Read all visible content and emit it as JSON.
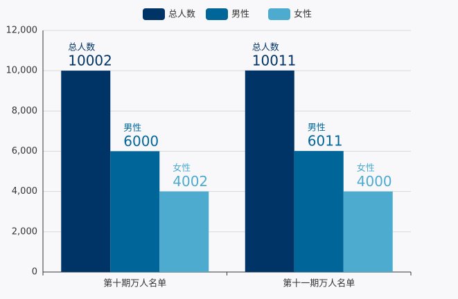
{
  "chart_data": {
    "type": "bar",
    "categories": [
      "第十期万人名单",
      "第十一期万人名单"
    ],
    "series": [
      {
        "name": "总人数",
        "color": "#003366",
        "values": [
          10002,
          10011
        ]
      },
      {
        "name": "男性",
        "color": "#006699",
        "values": [
          6000,
          6011
        ]
      },
      {
        "name": "女性",
        "color": "#4cabce",
        "values": [
          4002,
          4000
        ]
      }
    ],
    "ylim": [
      0,
      12000
    ],
    "yticks": [
      0,
      {
        "value": 2000,
        "label": "2,000"
      },
      {
        "value": 4000,
        "label": "4,000"
      },
      {
        "value": 6000,
        "label": "6,000"
      },
      {
        "value": 8000,
        "label": "8,000"
      },
      {
        "value": 10000,
        "label": "10,000"
      },
      {
        "value": 12000,
        "label": "12,000"
      }
    ],
    "grid": true,
    "legend": "top"
  }
}
